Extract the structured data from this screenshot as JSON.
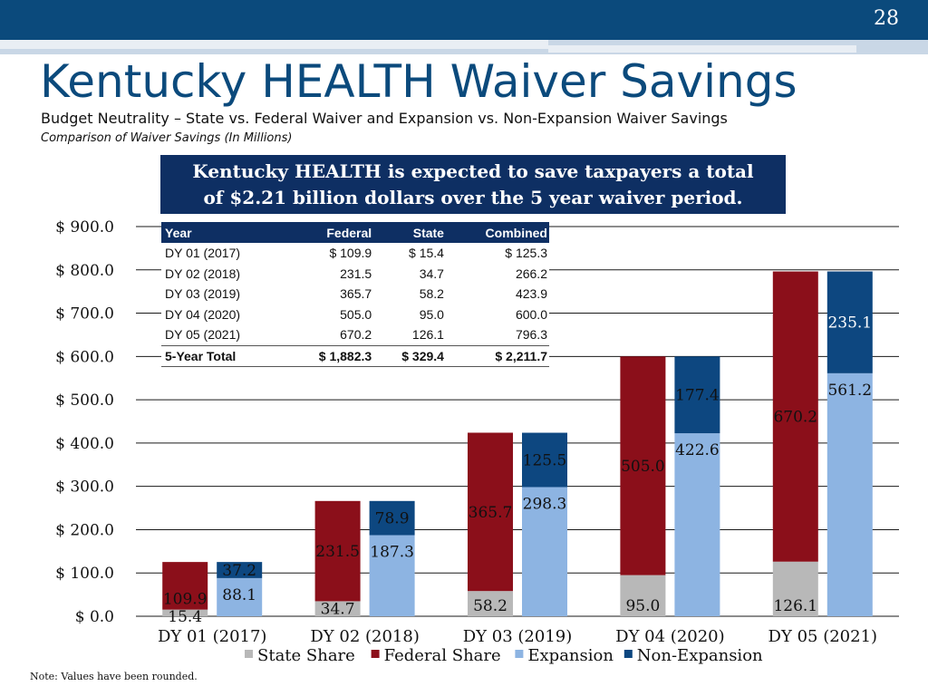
{
  "page_number": "28",
  "title": "Kentucky HEALTH Waiver Savings",
  "subtitle": "Budget Neutrality – State vs. Federal Waiver and Expansion vs. Non-Expansion Waiver Savings",
  "subsubtitle": "Comparison of Waiver Savings (In Millions)",
  "callout": {
    "line1": "Kentucky HEALTH is expected to save taxpayers a total",
    "line2": "of $2.21 billion dollars  over the 5 year waiver period."
  },
  "table": {
    "headers": [
      "Year",
      "Federal",
      "State",
      "Combined"
    ],
    "rows": [
      [
        "DY 01 (2017)",
        "$ 109.9",
        "$ 15.4",
        "$ 125.3"
      ],
      [
        "DY 02 (2018)",
        "231.5",
        "34.7",
        "266.2"
      ],
      [
        "DY 03 (2019)",
        "365.7",
        "58.2",
        "423.9"
      ],
      [
        "DY 04 (2020)",
        "505.0",
        "95.0",
        "600.0"
      ],
      [
        "DY 05 (2021)",
        "670.2",
        "126.1",
        "796.3"
      ]
    ],
    "total": [
      "5-Year Total",
      "$ 1,882.3",
      "$ 329.4",
      "$ 2,211.7"
    ]
  },
  "note": "Note: Values have been rounded.",
  "colors": {
    "state": "#b8b8b8",
    "federal": "#8b0f1a",
    "expansion": "#8db4e2",
    "nonexpansion": "#0d4780"
  },
  "chart_data": {
    "type": "bar",
    "categories": [
      "DY 01 (2017)",
      "DY 02 (2018)",
      "DY 03 (2019)",
      "DY 04 (2020)",
      "DY 05 (2021)"
    ],
    "ylim": [
      0,
      900
    ],
    "yticks": [
      0,
      100,
      200,
      300,
      400,
      500,
      600,
      700,
      800,
      900
    ],
    "ytick_labels": [
      "$ 0.0",
      "$ 100.0",
      "$ 200.0",
      "$ 300.0",
      "$ 400.0",
      "$ 500.0",
      "$ 600.0",
      "$ 700.0",
      "$ 800.0",
      "$ 900.0"
    ],
    "stacks": [
      {
        "stack": "State vs. Federal",
        "series": [
          {
            "name": "State Share",
            "color_key": "state",
            "values": [
              15.4,
              34.7,
              58.2,
              95.0,
              126.1
            ],
            "labels": [
              "15.4",
              "34.7",
              "58.2",
              "95.0",
              "126.1"
            ]
          },
          {
            "name": "Federal Share",
            "color_key": "federal",
            "values": [
              109.9,
              231.5,
              365.7,
              505.0,
              670.2
            ],
            "labels": [
              "109.9",
              "231.5",
              "365.7",
              "505.0",
              "670.2"
            ]
          }
        ]
      },
      {
        "stack": "Expansion vs. Non-Expansion",
        "series": [
          {
            "name": "Expansion",
            "color_key": "expansion",
            "values": [
              88.1,
              187.3,
              298.3,
              422.6,
              561.2
            ],
            "labels": [
              "88.1",
              "187.3",
              "298.3",
              "422.6",
              "561.2"
            ]
          },
          {
            "name": "Non-Expansion",
            "color_key": "nonexpansion",
            "values": [
              37.2,
              78.9,
              125.5,
              177.4,
              235.1
            ],
            "labels": [
              "37.2",
              "78.9",
              "125.5",
              "177.4",
              "235.1"
            ]
          }
        ]
      }
    ],
    "legend": [
      "State Share",
      "Federal Share",
      "Expansion",
      "Non-Expansion"
    ],
    "legend_position": "bottom"
  }
}
